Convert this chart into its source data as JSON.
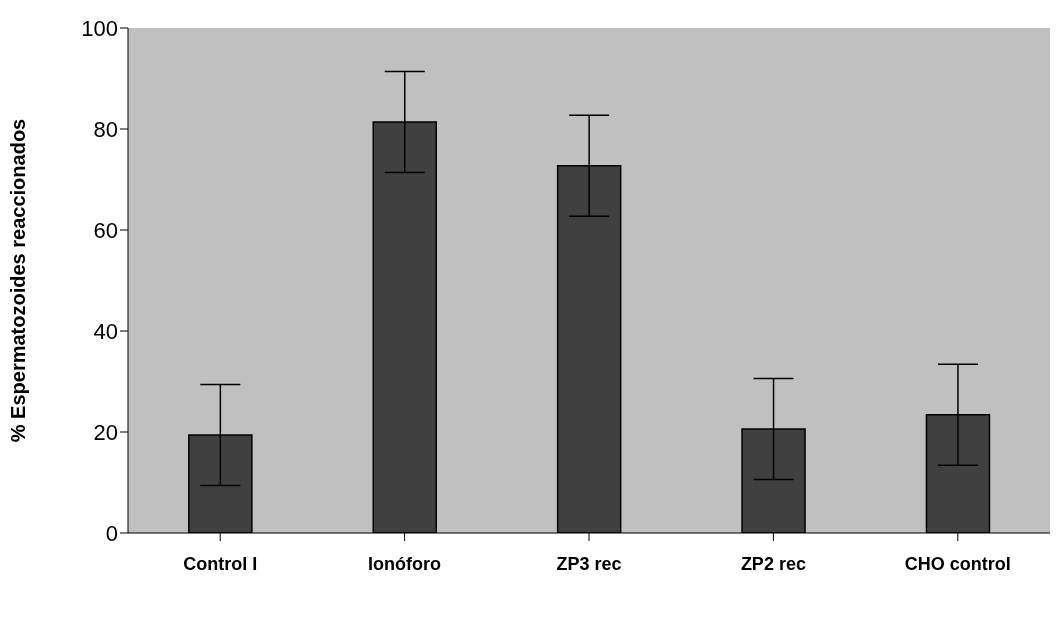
{
  "chart_data": {
    "type": "bar",
    "ylabel": "% Espermatozoides reaccionados",
    "categories": [
      "Control I",
      "Ionóforo",
      "ZP3 rec",
      "ZP2 rec",
      "CHO control"
    ],
    "values": [
      19.4,
      81.4,
      72.7,
      20.6,
      23.4
    ],
    "errors": [
      10,
      10,
      10,
      10,
      10
    ],
    "color": "#404040",
    "ylim": [
      0,
      100
    ],
    "yticks": [
      0,
      20,
      40,
      60,
      80,
      100
    ],
    "grid": false,
    "legend": false
  }
}
